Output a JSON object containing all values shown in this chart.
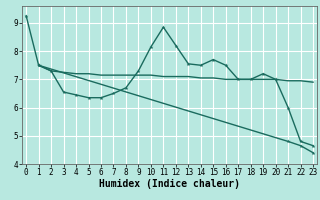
{
  "xlabel": "Humidex (Indice chaleur)",
  "background_color": "#b8e8e0",
  "grid_color": "#ffffff",
  "line_color": "#1a6b5e",
  "xlim": [
    -0.3,
    23.3
  ],
  "ylim": [
    4.0,
    9.6
  ],
  "yticks": [
    4,
    5,
    6,
    7,
    8,
    9
  ],
  "xticks": [
    0,
    1,
    2,
    3,
    4,
    5,
    6,
    7,
    8,
    9,
    10,
    11,
    12,
    13,
    14,
    15,
    16,
    17,
    18,
    19,
    20,
    21,
    22,
    23
  ],
  "line1_x": [
    0,
    1,
    2,
    3,
    4,
    5,
    6,
    7,
    8,
    9,
    10,
    11,
    12,
    13,
    14,
    15,
    16,
    17,
    18,
    19,
    20,
    21,
    22,
    23
  ],
  "line1_y": [
    9.25,
    7.5,
    7.3,
    6.55,
    6.45,
    6.35,
    6.35,
    6.5,
    6.7,
    7.3,
    8.15,
    8.85,
    8.2,
    7.55,
    7.5,
    7.7,
    7.5,
    7.0,
    7.0,
    7.2,
    7.0,
    6.0,
    4.8,
    4.65
  ],
  "line2_x": [
    1,
    2,
    3,
    4,
    5,
    6,
    7,
    8,
    9,
    10,
    11,
    12,
    13,
    14,
    15,
    16,
    17,
    18,
    19,
    20,
    21,
    22,
    23
  ],
  "line2_y": [
    7.5,
    7.3,
    7.25,
    7.2,
    7.2,
    7.15,
    7.15,
    7.15,
    7.15,
    7.15,
    7.1,
    7.1,
    7.1,
    7.05,
    7.05,
    7.0,
    7.0,
    7.0,
    7.0,
    7.0,
    6.95,
    6.95,
    6.9
  ],
  "line3_x": [
    1,
    21,
    22,
    23
  ],
  "line3_y": [
    7.5,
    4.8,
    4.65,
    4.4
  ],
  "marker": "*",
  "markersize": 3,
  "linewidth": 1.0,
  "tick_fontsize": 5.5,
  "xlabel_fontsize": 7
}
